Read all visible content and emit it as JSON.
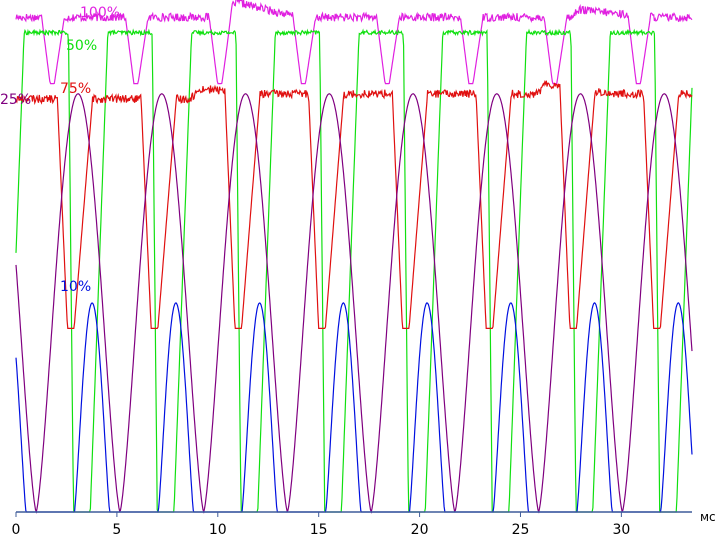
{
  "chart_data": {
    "type": "line",
    "title": "",
    "xlabel": "мс",
    "ylabel": "",
    "xlim": [
      0,
      33.5
    ],
    "ylim": [
      0,
      100
    ],
    "grid": false,
    "x_ticks": [
      0,
      5,
      10,
      15,
      20,
      25,
      30
    ],
    "x_tick_labels": [
      "0",
      "5",
      "10",
      "15",
      "20",
      "25",
      "30"
    ],
    "period_ms": 4.15,
    "series": [
      {
        "name": "100%",
        "color": "#e020e0",
        "high": 97,
        "low": 84,
        "phase_ms": 1.15,
        "steps": [
          {
            "x": 0.0,
            "y": 97
          },
          {
            "x": 10.2,
            "y": 97
          },
          {
            "x": 10.9,
            "y": 100
          },
          {
            "x": 14.0,
            "y": 97
          },
          {
            "x": 27.6,
            "y": 97
          },
          {
            "x": 27.8,
            "y": 98.5
          },
          {
            "x": 31.8,
            "y": 97
          },
          {
            "x": 33.5,
            "y": 97
          }
        ]
      },
      {
        "name": "50%",
        "color": "#10e010",
        "high": 94,
        "low": 0,
        "phase_ms": 2.6,
        "steps": [
          {
            "x": 0.0,
            "y": 94
          },
          {
            "x": 33.5,
            "y": 94
          }
        ]
      },
      {
        "name": "75%",
        "color": "#e01010",
        "high": 81,
        "low": 36,
        "phase_ms": 2.05,
        "steps": [
          {
            "x": 0.0,
            "y": 81
          },
          {
            "x": 8.6,
            "y": 81
          },
          {
            "x": 9.2,
            "y": 83
          },
          {
            "x": 12.0,
            "y": 82
          },
          {
            "x": 25.8,
            "y": 82
          },
          {
            "x": 26.3,
            "y": 84
          },
          {
            "x": 29.5,
            "y": 82
          },
          {
            "x": 33.5,
            "y": 82
          }
        ]
      },
      {
        "name": "25%",
        "color": "#800080",
        "high": 82,
        "low": 0,
        "phase_ms": 1.0,
        "steps": [
          {
            "x": 0.0,
            "y": 82
          },
          {
            "x": 33.5,
            "y": 82
          }
        ]
      },
      {
        "name": "10%",
        "color": "#0010e0",
        "high": 41,
        "low": 0,
        "phase_ms": 2.9,
        "steps": [
          {
            "x": 0.0,
            "y": 41
          },
          {
            "x": 33.5,
            "y": 41
          }
        ]
      }
    ]
  }
}
